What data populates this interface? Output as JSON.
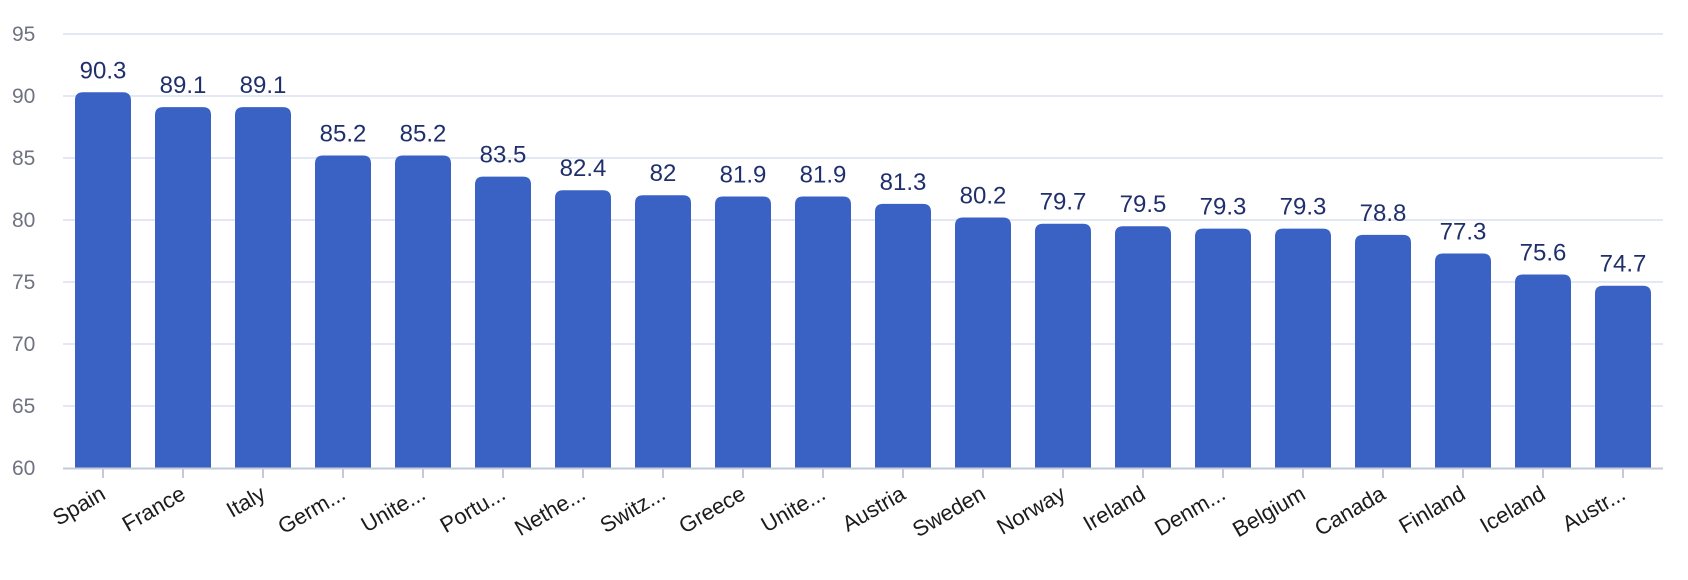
{
  "chart_data": {
    "type": "bar",
    "categories": [
      "Spain",
      "France",
      "Italy",
      "Germ...",
      "Unite...",
      "Portu...",
      "Nethe...",
      "Switz...",
      "Greece",
      "Unite...",
      "Austria",
      "Sweden",
      "Norway",
      "Ireland",
      "Denm...",
      "Belgium",
      "Canada",
      "Finland",
      "Iceland",
      "Austr..."
    ],
    "values": [
      90.3,
      89.1,
      89.1,
      85.2,
      85.2,
      83.5,
      82.4,
      82,
      81.9,
      81.9,
      81.3,
      80.2,
      79.7,
      79.5,
      79.3,
      79.3,
      78.8,
      77.3,
      75.6,
      74.7
    ],
    "value_labels": [
      "90.3",
      "89.1",
      "89.1",
      "85.2",
      "85.2",
      "83.5",
      "82.4",
      "82",
      "81.9",
      "81.9",
      "81.3",
      "80.2",
      "79.7",
      "79.5",
      "79.3",
      "79.3",
      "78.8",
      "77.3",
      "75.6",
      "74.7"
    ],
    "ylim": [
      60,
      95
    ],
    "yticks": [
      "60",
      "65",
      "70",
      "75",
      "80",
      "85",
      "90",
      "95"
    ],
    "grid": true,
    "colors": {
      "bar": "#3a62c4",
      "grid": "#dcdff0",
      "axis": "#c6cad8",
      "data_label": "#1f2f6b"
    }
  }
}
